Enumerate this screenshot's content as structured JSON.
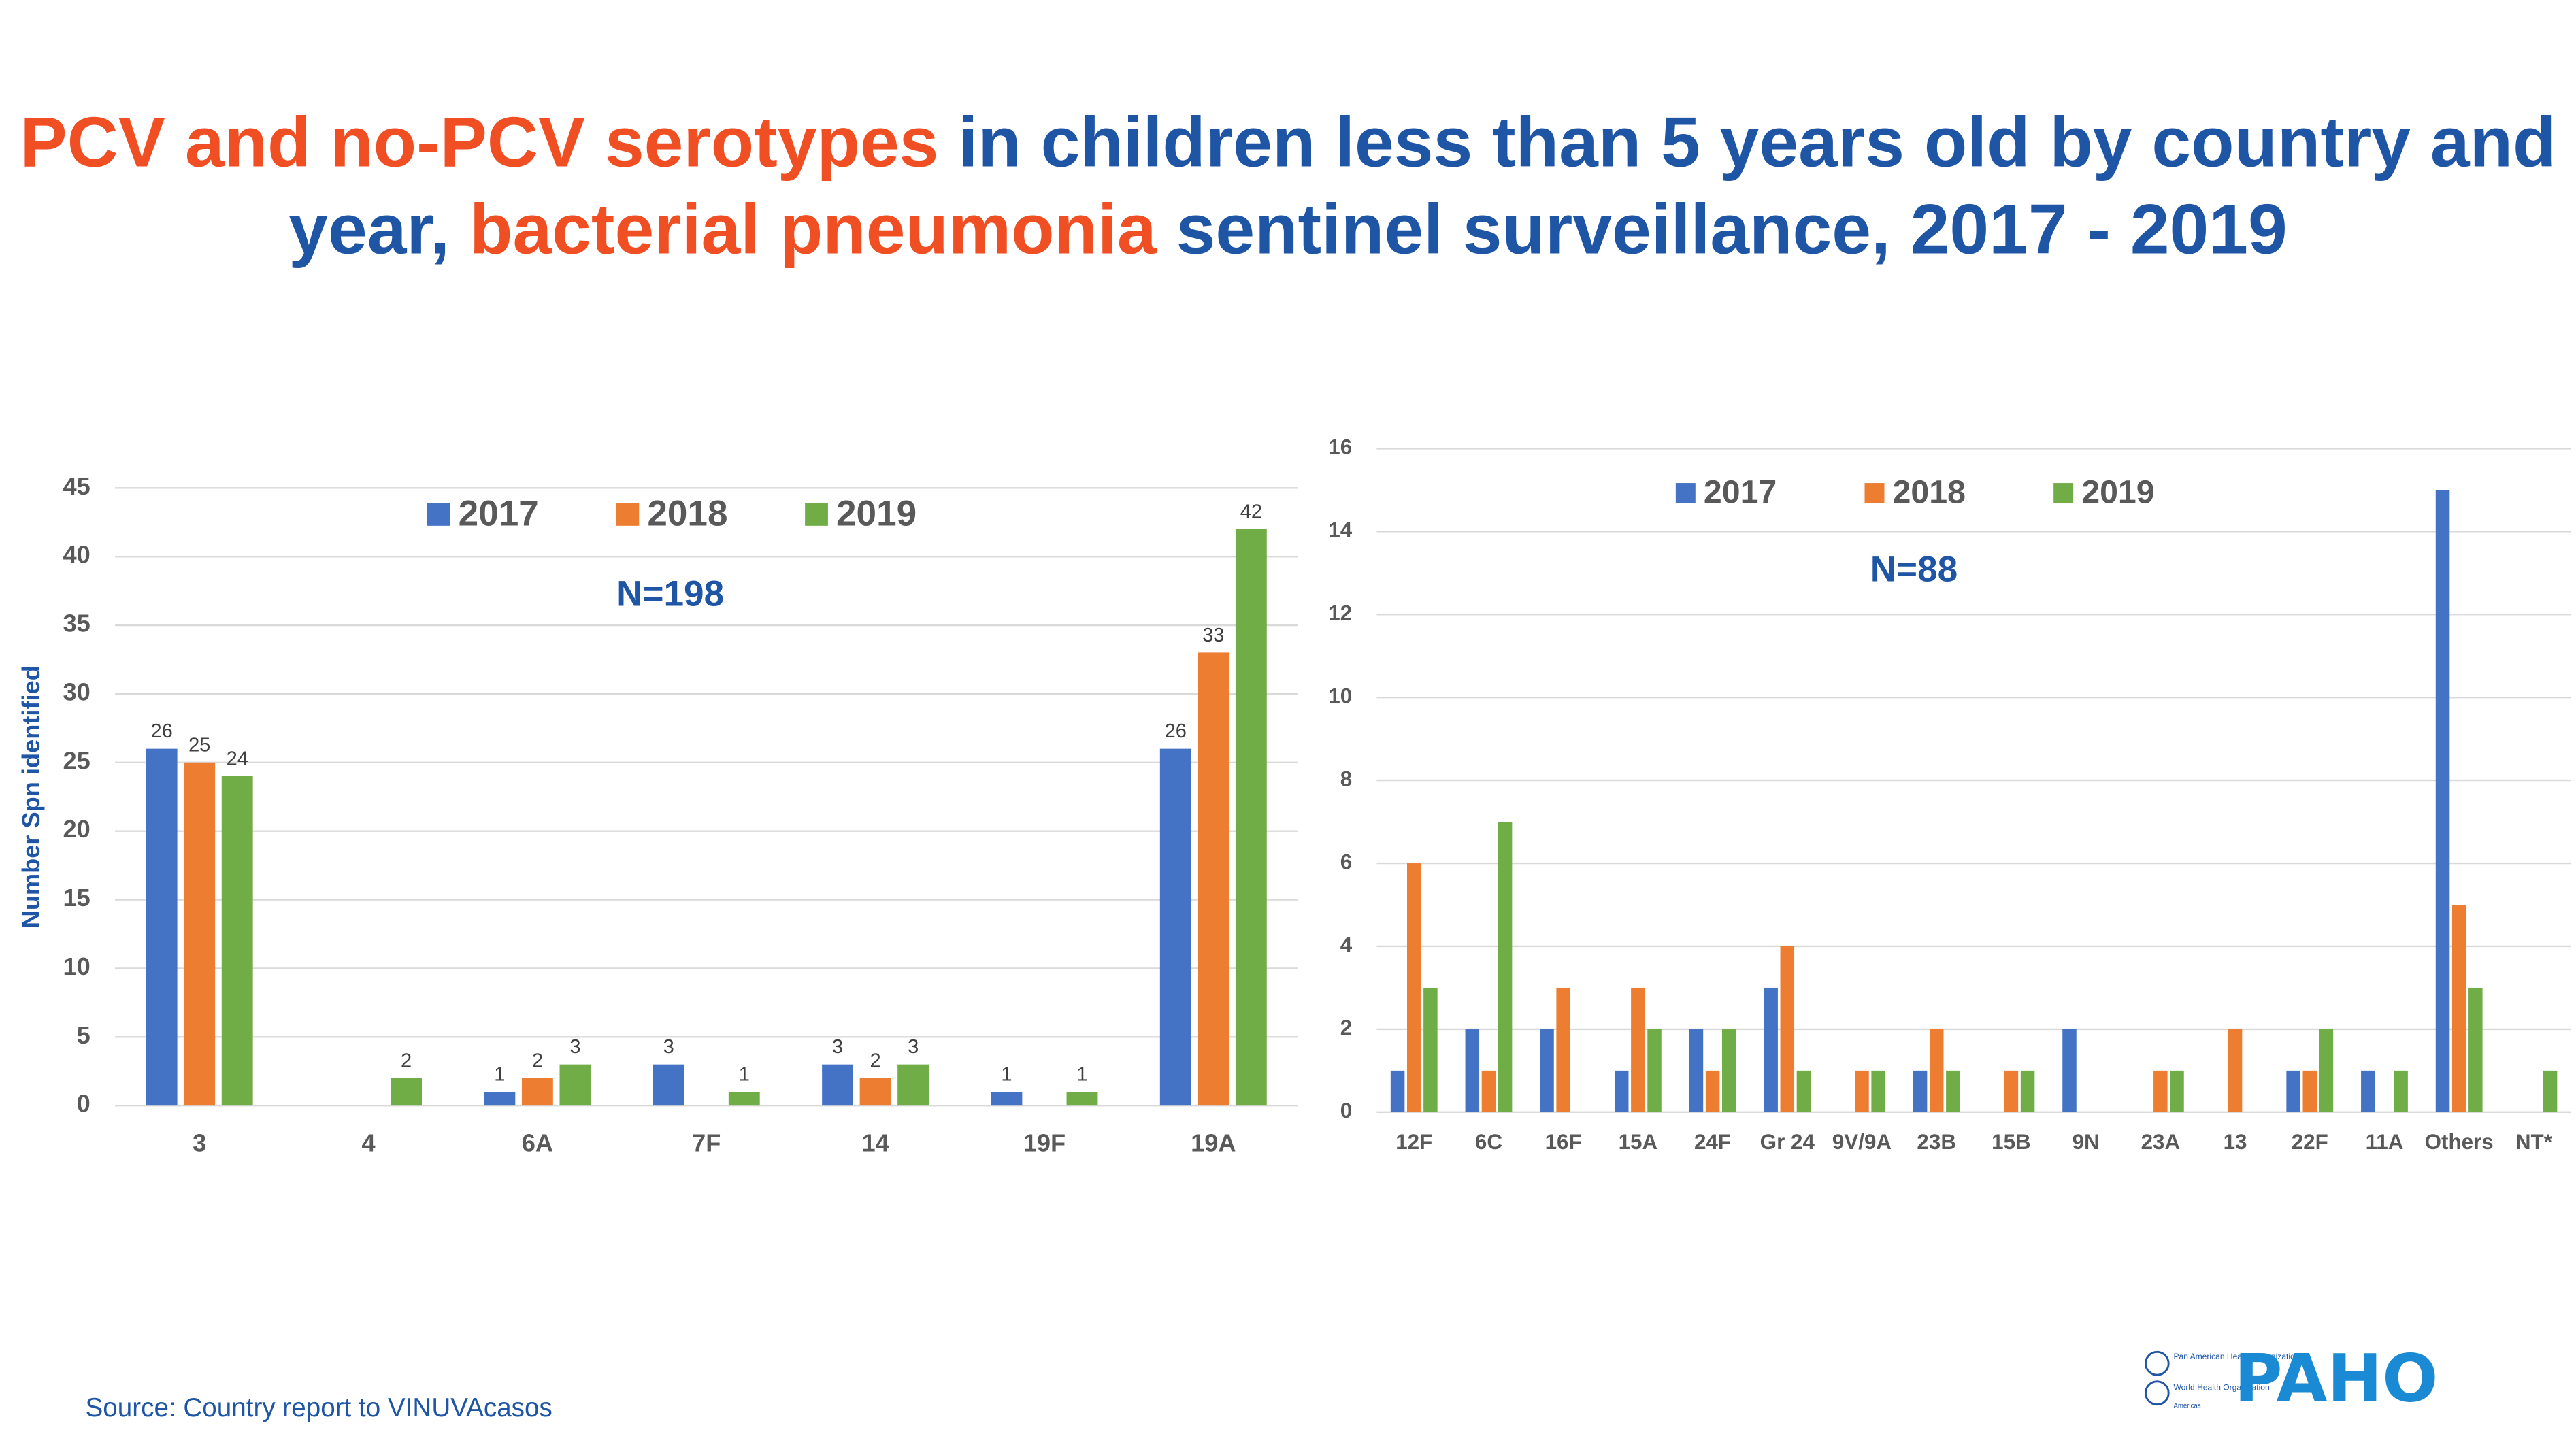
{
  "title": {
    "lines": [
      [
        {
          "text": "PCV and no-PCV serotypes",
          "color": "#f04e23"
        },
        {
          "text": "in children less than 5 years old by country and",
          "color": "#1f55a5"
        }
      ],
      [
        {
          "text": "year,",
          "color": "#1f55a5"
        },
        {
          "text": "bacterial pneumonia",
          "color": "#f04e23"
        },
        {
          "text": "sentinel surveillance, 2017 - 2019",
          "color": "#1f55a5"
        }
      ]
    ]
  },
  "chart_data": [
    {
      "type": "bar",
      "ylabel": "Number Spn identified",
      "annotation": "N=198",
      "categories": [
        "3",
        "4",
        "6A",
        "7F",
        "14",
        "19F",
        "19A"
      ],
      "series": [
        {
          "name": "2017",
          "color": "#4472c4",
          "values": [
            26,
            null,
            1,
            3,
            3,
            1,
            26
          ]
        },
        {
          "name": "2018",
          "color": "#ed7d31",
          "values": [
            25,
            null,
            2,
            null,
            2,
            null,
            33
          ]
        },
        {
          "name": "2019",
          "color": "#70ad47",
          "values": [
            24,
            2,
            3,
            1,
            3,
            1,
            42
          ]
        }
      ],
      "ylim": [
        0,
        45
      ],
      "yticks": [
        0,
        5,
        10,
        15,
        20,
        25,
        30,
        35,
        40,
        45
      ],
      "grid": true,
      "legend": "top",
      "data_labels": true
    },
    {
      "type": "bar",
      "annotation": "N=88",
      "categories": [
        "12F",
        "6C",
        "16F",
        "15A",
        "24F",
        "Gr 24",
        "9V/9A",
        "23B",
        "15B",
        "9N",
        "23A",
        "13",
        "22F",
        "11A",
        "Others",
        "NT*"
      ],
      "series": [
        {
          "name": "2017",
          "color": "#4472c4",
          "values": [
            1,
            2,
            2,
            1,
            2,
            3,
            null,
            1,
            null,
            2,
            null,
            null,
            1,
            1,
            15,
            null
          ]
        },
        {
          "name": "2018",
          "color": "#ed7d31",
          "values": [
            6,
            1,
            3,
            3,
            1,
            4,
            1,
            2,
            1,
            null,
            1,
            2,
            1,
            null,
            5,
            null
          ]
        },
        {
          "name": "2019",
          "color": "#70ad47",
          "values": [
            3,
            7,
            null,
            2,
            2,
            1,
            1,
            1,
            1,
            null,
            1,
            null,
            2,
            1,
            3,
            1
          ]
        }
      ],
      "ylim": [
        0,
        16
      ],
      "yticks": [
        0,
        2,
        4,
        6,
        8,
        10,
        12,
        14,
        16
      ],
      "grid": true,
      "legend": "top",
      "data_labels": false
    }
  ],
  "source": "Source: Country report to VINUVAcasos",
  "logo": {
    "name": "PAHO",
    "lines": [
      "Pan American Health Organization",
      "World Health Organization",
      "Americas"
    ]
  }
}
